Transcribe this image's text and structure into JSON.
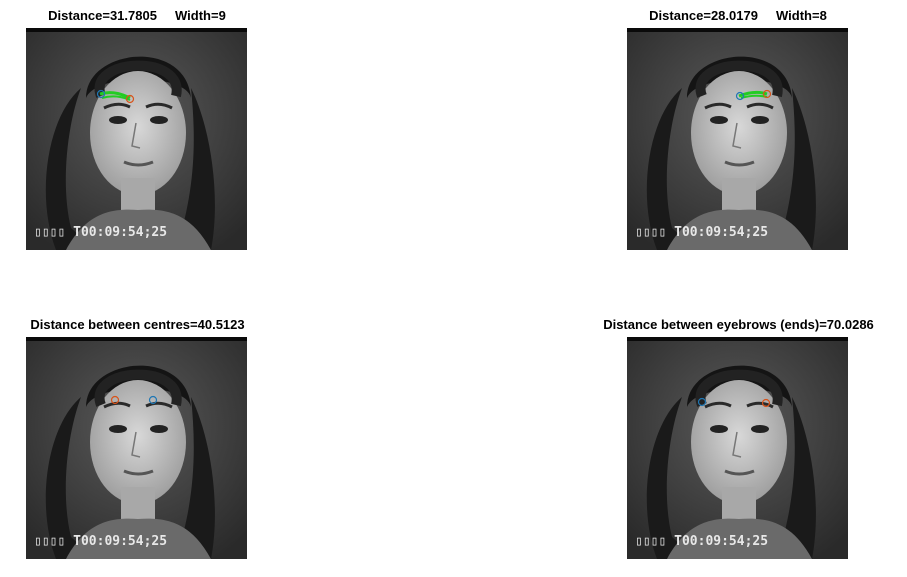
{
  "panels": [
    {
      "title": "Distance=31.7805     Width=9",
      "stamp": "▯▯▯▯ T00:09:54;25",
      "overlay": "eyebrow-trace-left"
    },
    {
      "title": "Distance=28.0179     Width=8",
      "stamp": "▯▯▯▯ T00:09:54;25",
      "overlay": "eyebrow-trace-right"
    },
    {
      "title": "Distance between centres=40.5123",
      "stamp": "▯▯▯▯ T00:09:54;25",
      "overlay": "eyebrow-centres"
    },
    {
      "title": "Distance between eyebrows (ends)=70.0286",
      "stamp": "▯▯▯▯ T00:09:54;25",
      "overlay": "eyebrow-ends"
    }
  ],
  "colors": {
    "marker_blue": "#1f77b4",
    "marker_orange": "#d95319",
    "trace_green": "#22cc22",
    "background": "#ffffff"
  }
}
